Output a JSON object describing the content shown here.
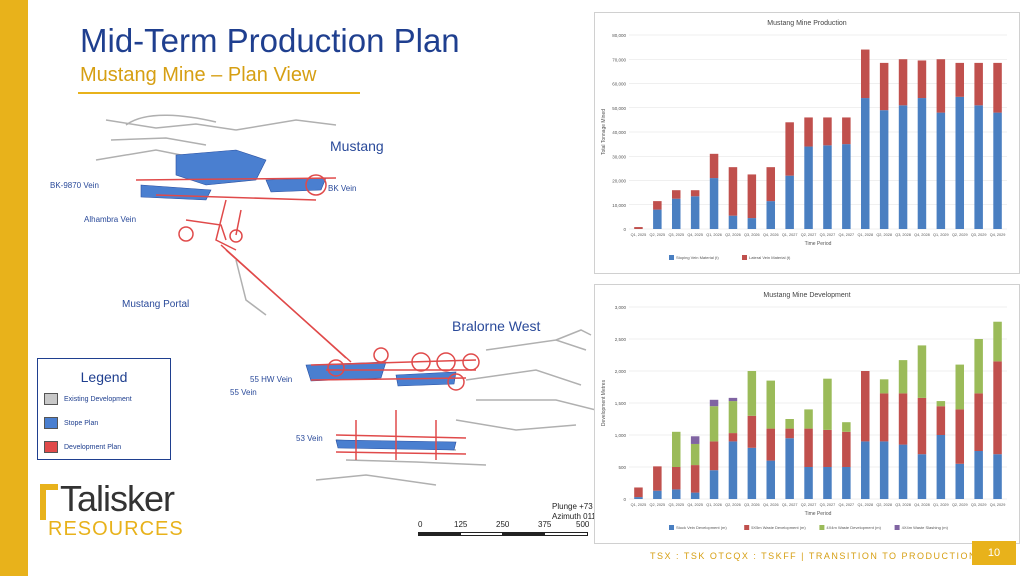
{
  "header": {
    "title": "Mid-Term Production Plan",
    "subtitle": "Mustang Mine – Plan View"
  },
  "map": {
    "labels": {
      "mustang": "Mustang",
      "bk9870": "BK-9870 Vein",
      "bk": "BK Vein",
      "alhambra": "Alhambra Vein",
      "portal": "Mustang Portal",
      "bralorne": "Bralorne West",
      "hw55": "55 HW Vein",
      "v55": "55 Vein",
      "v53": "53 Vein"
    },
    "plunge": "Plunge +73",
    "azimuth": "Azimuth 011",
    "scale": [
      "0",
      "125",
      "250",
      "375",
      "500"
    ]
  },
  "legend": {
    "title": "Legend",
    "items": [
      {
        "label": "Existing Development",
        "color": "#c8c8c8"
      },
      {
        "label": "Stope Plan",
        "color": "#4a7fd0"
      },
      {
        "label": "Development Plan",
        "color": "#e04a4a"
      }
    ]
  },
  "logo": {
    "line1": "Talisker",
    "line2": "RESOURCES"
  },
  "footer": {
    "tickers": "TSX : TSK     OTCQX : TSKFF   |   TRANSITION TO PRODUCTION",
    "page": "10"
  },
  "chart_data": [
    {
      "type": "bar",
      "title": "Mustang Mine Production",
      "xlabel": "Time Period",
      "ylabel": "Total Tonnage Mined",
      "ylim": [
        0,
        80000
      ],
      "yticks": [
        "0",
        "10,000",
        "20,000",
        "30,000",
        "40,000",
        "50,000",
        "60,000",
        "70,000",
        "80,000"
      ],
      "categories": [
        "Q1, 2025",
        "Q2, 2025",
        "Q3, 2025",
        "Q4, 2025",
        "Q1, 2026",
        "Q2, 2026",
        "Q3, 2026",
        "Q4, 2026",
        "Q1, 2027",
        "Q2, 2027",
        "Q3, 2027",
        "Q4, 2027",
        "Q1, 2028",
        "Q2, 2028",
        "Q3, 2028",
        "Q4, 2028",
        "Q1, 2029",
        "Q2, 2029",
        "Q3, 2029",
        "Q4, 2029"
      ],
      "stacked": true,
      "series": [
        {
          "name": "Stoping Vein Material (t)",
          "color": "#4a7fc1",
          "values": [
            0,
            8000,
            12500,
            13500,
            21000,
            5500,
            4500,
            11500,
            22000,
            34000,
            34500,
            35000,
            54000,
            49000,
            51000,
            54000,
            48000,
            54500,
            51000,
            48000
          ]
        },
        {
          "name": "Lateral Vein Material (t)",
          "color": "#c0504d",
          "values": [
            800,
            3500,
            3500,
            2500,
            10000,
            20000,
            18000,
            14000,
            22000,
            12000,
            11500,
            11000,
            20000,
            19500,
            19000,
            15500,
            22000,
            14000,
            17500,
            20500
          ]
        }
      ],
      "legend": "bottom"
    },
    {
      "type": "bar",
      "title": "Mustang Mine Development",
      "xlabel": "Time Period",
      "ylabel": "Development Metres",
      "ylim": [
        0,
        3000
      ],
      "yticks": [
        "0",
        "500",
        "1,000",
        "1,500",
        "2,000",
        "2,500",
        "3,000"
      ],
      "categories": [
        "Q1, 2025",
        "Q2, 2025",
        "Q3, 2025",
        "Q4, 2025",
        "Q1, 2026",
        "Q2, 2026",
        "Q3, 2026",
        "Q4, 2026",
        "Q1, 2027",
        "Q2, 2027",
        "Q3, 2027",
        "Q4, 2027",
        "Q1, 2028",
        "Q2, 2028",
        "Q3, 2028",
        "Q4, 2028",
        "Q1, 2029",
        "Q2, 2029",
        "Q3, 2029",
        "Q4, 2029"
      ],
      "stacked": true,
      "series": [
        {
          "name": "Stock Vein Development (m)",
          "color": "#4a7fc1",
          "values": [
            30,
            130,
            150,
            100,
            450,
            900,
            800,
            600,
            950,
            500,
            500,
            500,
            900,
            900,
            850,
            700,
            1000,
            550,
            750,
            700
          ]
        },
        {
          "name": "5X5m Waste Development (m)",
          "color": "#c0504d",
          "values": [
            150,
            380,
            350,
            430,
            450,
            130,
            500,
            500,
            150,
            600,
            580,
            550,
            1100,
            750,
            800,
            880,
            450,
            850,
            900,
            1450
          ]
        },
        {
          "name": "4X4m Waste Development (m)",
          "color": "#9bbb59",
          "values": [
            0,
            0,
            550,
            330,
            550,
            500,
            700,
            750,
            150,
            300,
            800,
            150,
            0,
            220,
            520,
            820,
            80,
            700,
            850,
            620
          ]
        },
        {
          "name": "4X4m Waste Slashing (m)",
          "color": "#8064a2",
          "values": [
            0,
            0,
            0,
            120,
            100,
            50,
            0,
            0,
            0,
            0,
            0,
            0,
            0,
            0,
            0,
            0,
            0,
            0,
            0,
            0
          ]
        }
      ],
      "legend": "bottom"
    }
  ]
}
